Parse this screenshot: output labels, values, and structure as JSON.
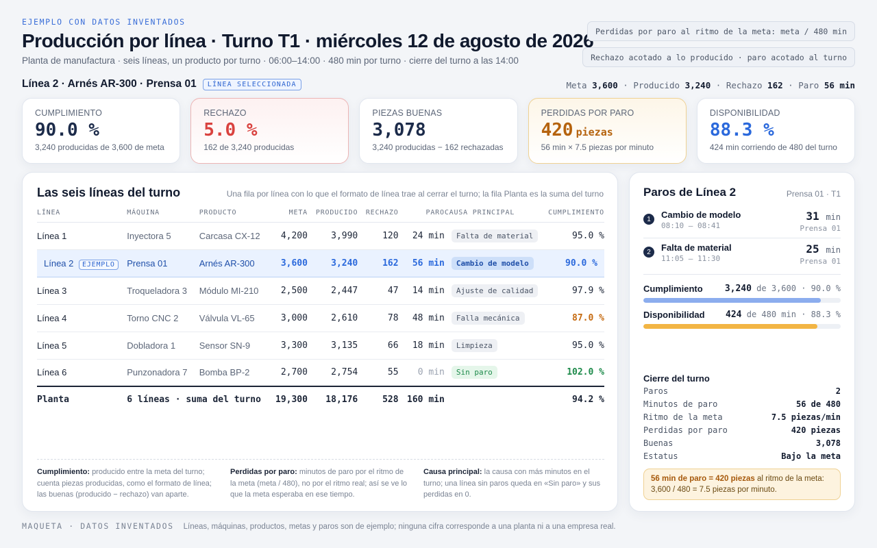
{
  "header": {
    "eyebrow": "EJEMPLO CON DATOS INVENTADOS",
    "title": "Producción por línea · Turno T1 · miércoles 12 de agosto de 2026",
    "subtitle": "Planta de manufactura · seis líneas, un producto por turno · 06:00–14:00 · 480 min por turno · cierre del turno a las 14:00",
    "chip_rate": "Perdidas por paro al ritmo de la meta: meta / 480 min",
    "chip_bounds": "Rechazo acotado a lo producido · paro acotado al turno"
  },
  "selection": {
    "name": "Línea 2 · Arnés AR-300 · Prensa 01",
    "badge": "LÍNEA SELECCIONADA",
    "summary": {
      "meta_label": "Meta",
      "meta": "3,600",
      "prod_label": "Producido",
      "prod": "3,240",
      "rej_label": "Rechazo",
      "rej": "162",
      "stop_label": "Paro",
      "stop": "56 min"
    }
  },
  "kpis": [
    {
      "label": "CUMPLIMIENTO",
      "value": "90.0 %",
      "unit": "",
      "note": "3,240 producidas de 3,600 de meta"
    },
    {
      "label": "RECHAZO",
      "value": "5.0 %",
      "unit": "",
      "note": "162 de 3,240 producidas"
    },
    {
      "label": "PIEZAS BUENAS",
      "value": "3,078",
      "unit": "",
      "note": "3,240 producidas − 162 rechazadas"
    },
    {
      "label": "PERDIDAS POR PARO",
      "value": "420",
      "unit": "piezas",
      "note": "56 min × 7.5 piezas por minuto"
    },
    {
      "label": "DISPONIBILIDAD",
      "value": "88.3 %",
      "unit": "",
      "note": "424 min corriendo de 480 del turno"
    }
  ],
  "table": {
    "title": "Las seis líneas del turno",
    "hint": "Una fila por línea con lo que el formato de línea trae al cerrar el turno; la fila Planta es la suma del turno",
    "headers": [
      "LÍNEA",
      "MÁQUINA",
      "PRODUCTO",
      "META",
      "PRODUCIDO",
      "RECHAZO",
      "PARO",
      "CAUSA PRINCIPAL",
      "CUMPLIMIENTO"
    ],
    "rows": [
      {
        "line": "Línea 1",
        "badge": "",
        "machine": "Inyectora 5",
        "product": "Carcasa CX-12",
        "meta": "4,200",
        "prod": "3,990",
        "rej": "120",
        "stop": "24 min",
        "cause": "Falta de material",
        "comp": "95.0 %"
      },
      {
        "line": "Línea 2",
        "badge": "EJEMPLO",
        "machine": "Prensa 01",
        "product": "Arnés AR-300",
        "meta": "3,600",
        "prod": "3,240",
        "rej": "162",
        "stop": "56 min",
        "cause": "Cambio de modelo",
        "comp": "90.0 %"
      },
      {
        "line": "Línea 3",
        "badge": "",
        "machine": "Troqueladora 3",
        "product": "Módulo MI-210",
        "meta": "2,500",
        "prod": "2,447",
        "rej": "47",
        "stop": "14 min",
        "cause": "Ajuste de calidad",
        "comp": "97.9 %"
      },
      {
        "line": "Línea 4",
        "badge": "",
        "machine": "Torno CNC 2",
        "product": "Válvula VL-65",
        "meta": "3,000",
        "prod": "2,610",
        "rej": "78",
        "stop": "48 min",
        "cause": "Falla mecánica",
        "comp": "87.0 %"
      },
      {
        "line": "Línea 5",
        "badge": "",
        "machine": "Dobladora 1",
        "product": "Sensor SN-9",
        "meta": "3,300",
        "prod": "3,135",
        "rej": "66",
        "stop": "18 min",
        "cause": "Limpieza",
        "comp": "95.0 %"
      },
      {
        "line": "Línea 6",
        "badge": "",
        "machine": "Punzonadora 7",
        "product": "Bomba BP-2",
        "meta": "2,700",
        "prod": "2,754",
        "rej": "55",
        "stop": "0 min",
        "cause": "Sin paro",
        "comp": "102.0 %"
      }
    ],
    "total": {
      "line": "Planta",
      "desc": "6 líneas · suma del turno",
      "meta": "19,300",
      "prod": "18,176",
      "rej": "528",
      "stop": "160 min",
      "comp": "94.2 %"
    }
  },
  "notes": [
    {
      "k": "Cumplimiento:",
      "t": "producido entre la meta del turno; cuenta piezas producidas, como el formato de línea; las buenas (producido − rechazo) van aparte."
    },
    {
      "k": "Perdidas por paro:",
      "t": "minutos de paro por el ritmo de la meta (meta / 480), no por el ritmo real; así se ve lo que la meta esperaba en ese tiempo."
    },
    {
      "k": "Causa principal:",
      "t": "la causa con más minutos en el turno; una línea sin paros queda en «Sin paro» y sus perdidas en 0."
    }
  ],
  "side": {
    "title": "Paros de Línea 2",
    "where": "Prensa 01 · T1",
    "stops": [
      {
        "n": "1",
        "name": "Cambio de modelo",
        "time": "08:10 – 08:41",
        "mins": "31",
        "unit": "min",
        "press": "Prensa 01"
      },
      {
        "n": "2",
        "name": "Falta de material",
        "time": "11:05 – 11:30",
        "mins": "25",
        "unit": "min",
        "press": "Prensa 01"
      }
    ],
    "meters": [
      {
        "label": "Cumplimiento",
        "bold": "3,240",
        "rest": " de 3,600 · 90.0 %",
        "level": 0.9,
        "color": "#8cadee"
      },
      {
        "label": "Disponibilidad",
        "bold": "424",
        "rest": " de 480 min · 88.3 %",
        "level": 0.883,
        "color": "#f2b544"
      }
    ],
    "close_title": "Cierre del turno",
    "close": [
      {
        "k": "Paros",
        "v": "2"
      },
      {
        "k": "Minutos de paro",
        "v": "56 de 480"
      },
      {
        "k": "Ritmo de la meta",
        "v": "7.5 piezas/min"
      },
      {
        "k": "Perdidas por paro",
        "v": "420 piezas"
      },
      {
        "k": "Buenas",
        "v": "3,078"
      },
      {
        "k": "Estatus",
        "v": "Bajo la meta"
      }
    ],
    "callout_bold": "56 min de paro = 420 piezas",
    "callout_rest": " al ritmo de la meta: 3,600 / 480 = 7.5 piezas por minuto."
  },
  "footer": {
    "label": "MAQUETA · DATOS INVENTADOS",
    "text": "Líneas, máquinas, productos, metas y paros son de ejemplo; ninguna cifra corresponde a una planta ni a una empresa real."
  }
}
